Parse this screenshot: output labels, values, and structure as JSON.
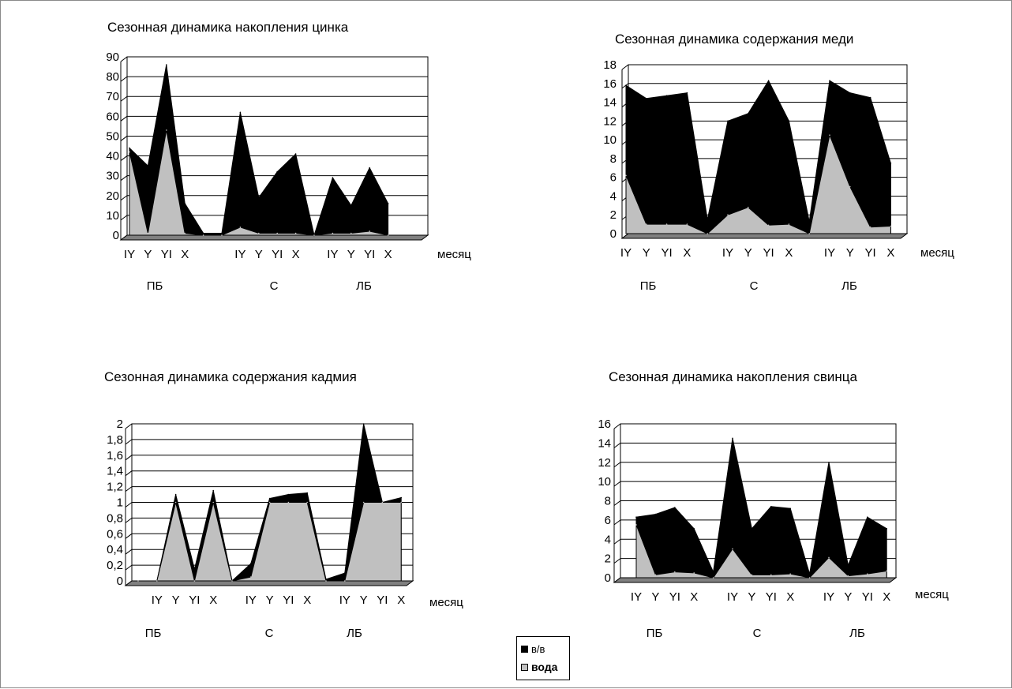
{
  "legend": {
    "items": [
      {
        "label": "в/в",
        "color": "#000000"
      },
      {
        "label": "вода",
        "color": "#c0c0c0"
      }
    ]
  },
  "chart_data": [
    {
      "type": "area",
      "title": "Сезонная динамика накопления цинка",
      "xlabel": "месяц",
      "ylim": [
        0,
        90
      ],
      "yticks": [
        0,
        10,
        20,
        30,
        40,
        50,
        60,
        70,
        80,
        90
      ],
      "groups": [
        "ПБ",
        "С",
        "ЛБ"
      ],
      "categories": [
        "IY",
        "Y",
        "YI",
        "X",
        "",
        "",
        "IY",
        "Y",
        "YI",
        "X",
        "",
        "IY",
        "Y",
        "YI",
        "X"
      ],
      "series": [
        {
          "name": "в/в",
          "values": [
            44,
            35,
            86,
            16,
            1,
            1,
            62,
            19,
            32,
            41,
            0,
            29,
            15,
            34,
            16
          ]
        },
        {
          "name": "вода",
          "values": [
            42,
            1,
            53,
            1,
            0,
            0,
            4,
            1,
            1,
            1,
            0,
            1,
            1,
            2,
            0
          ]
        }
      ]
    },
    {
      "type": "area",
      "title": "Сезонная динамика содержания меди",
      "xlabel": "месяц",
      "ylim": [
        0,
        18
      ],
      "yticks": [
        0,
        2,
        4,
        6,
        8,
        10,
        12,
        14,
        16,
        18
      ],
      "groups": [
        "ПБ",
        "С",
        "ЛБ"
      ],
      "categories": [
        "IY",
        "Y",
        "YI",
        "X",
        "",
        "IY",
        "Y",
        "YI",
        "X",
        "",
        "IY",
        "Y",
        "YI",
        "X"
      ],
      "series": [
        {
          "name": "в/в",
          "values": [
            15.8,
            14.4,
            14.7,
            15,
            1.5,
            12,
            12.8,
            16.3,
            12,
            1.3,
            16.3,
            15,
            14.5,
            7.5
          ]
        },
        {
          "name": "вода",
          "values": [
            6.2,
            1,
            1,
            1,
            0,
            2,
            2.8,
            0.9,
            1,
            0,
            10.5,
            5,
            0.7,
            0.8
          ]
        }
      ]
    },
    {
      "type": "area",
      "title": "Сезонная динамика содержания кадмия",
      "xlabel": "месяц",
      "ylim": [
        0,
        2
      ],
      "yticks": [
        "0",
        "0,2",
        "0,4",
        "0,6",
        "0,8",
        "1",
        "1,2",
        "1,4",
        "1,6",
        "1,8",
        "2"
      ],
      "groups": [
        "ПБ",
        "С",
        "ЛБ"
      ],
      "categories": [
        "",
        "IY",
        "Y",
        "YI",
        "X",
        "",
        "IY",
        "Y",
        "YI",
        "X",
        "",
        "IY",
        "Y",
        "YI",
        "X"
      ],
      "series": [
        {
          "name": "в/в",
          "values": [
            0,
            0,
            1.1,
            0.15,
            1.15,
            0,
            0.22,
            1.05,
            1.1,
            1.12,
            0.02,
            0.1,
            2,
            1,
            1.06
          ]
        },
        {
          "name": "вода",
          "values": [
            0,
            0,
            1,
            0,
            1,
            0,
            0.05,
            1,
            1,
            1,
            0,
            0,
            1,
            1,
            1
          ]
        }
      ]
    },
    {
      "type": "area",
      "title": "Сезонная динамика накопления свинца",
      "xlabel": "месяц",
      "ylim": [
        0,
        16
      ],
      "yticks": [
        0,
        2,
        4,
        6,
        8,
        10,
        12,
        14,
        16
      ],
      "groups": [
        "ПБ",
        "С",
        "ЛБ"
      ],
      "categories": [
        "IY",
        "Y",
        "YI",
        "X",
        "",
        "IY",
        "Y",
        "YI",
        "X",
        "",
        "IY",
        "Y",
        "YI",
        "X"
      ],
      "series": [
        {
          "name": "в/в",
          "values": [
            6.3,
            6.6,
            7.3,
            5.1,
            0.6,
            14.5,
            5.1,
            7.4,
            7.2,
            0.4,
            12,
            1.3,
            6.3,
            5.1
          ]
        },
        {
          "name": "вода",
          "values": [
            5.5,
            0.3,
            0.6,
            0.5,
            0,
            3,
            0.3,
            0.3,
            0.4,
            0,
            2.1,
            0.2,
            0.4,
            0.7
          ]
        }
      ]
    }
  ]
}
